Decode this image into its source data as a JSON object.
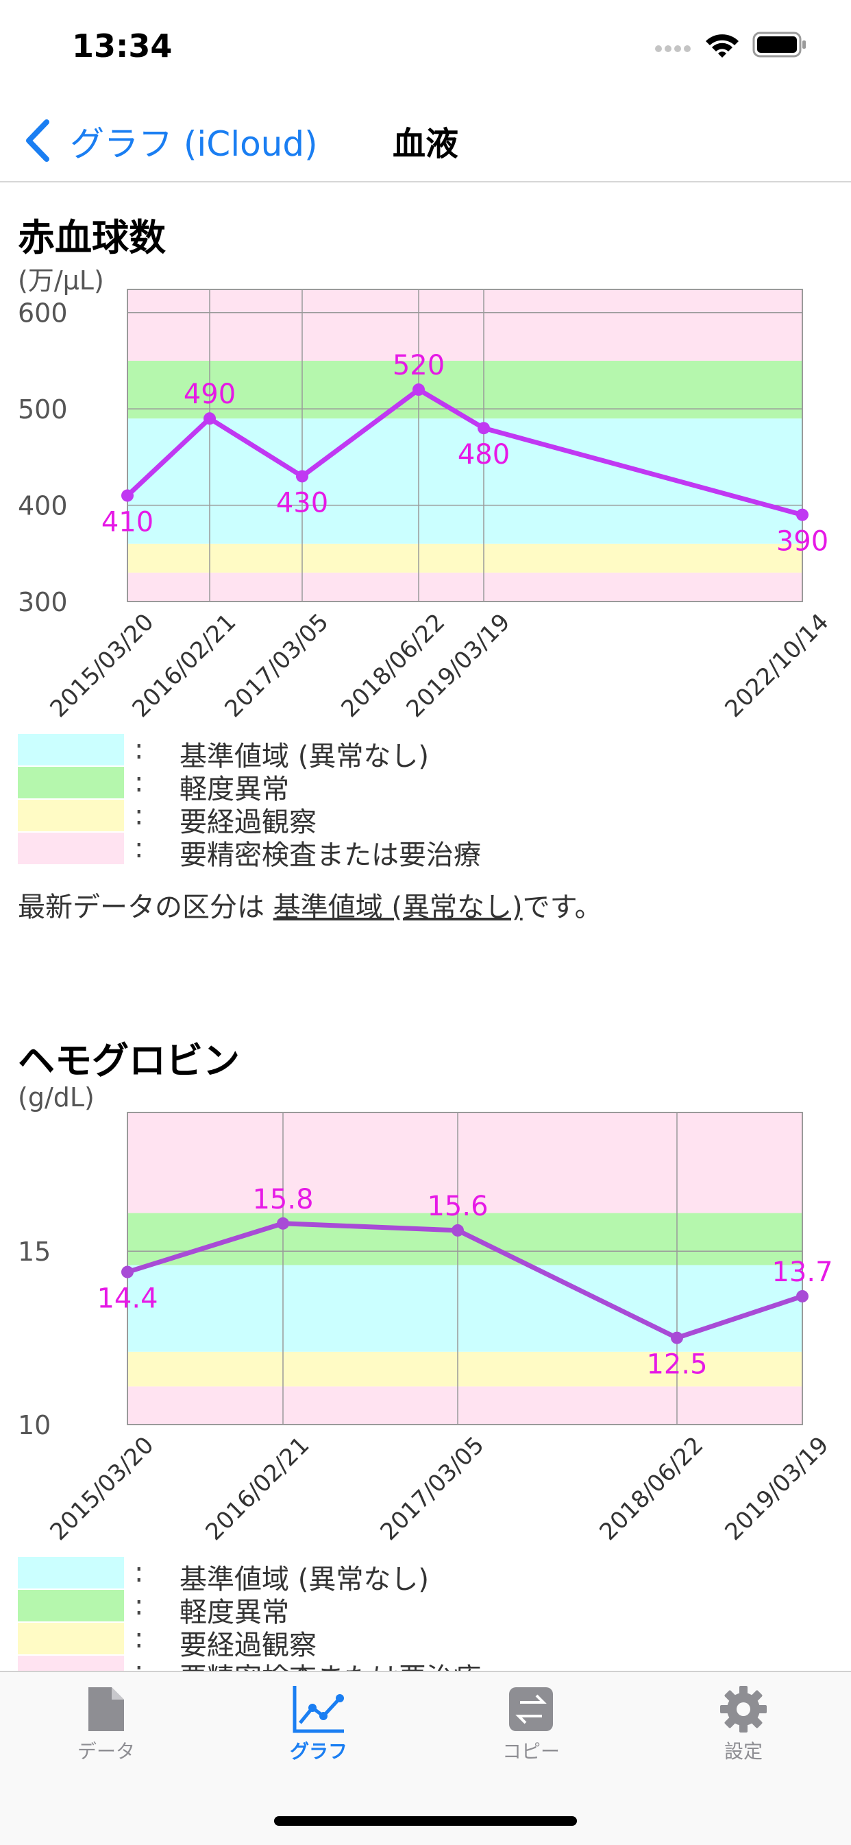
{
  "status_bar": {
    "time": "13:34"
  },
  "nav": {
    "back_label": "グラフ (iCloud)",
    "title": "血液"
  },
  "legend_labels": [
    "基準値域 (異常なし)",
    "軽度異常",
    "要経過観察",
    "要精密検査または要治療"
  ],
  "legend_colon": ":",
  "colors": {
    "normal": "#cbffff",
    "mild": "#b5f7ad",
    "observe": "#fffbc5",
    "detailed": "#ffe3f1",
    "line_rbc": "#c038f2",
    "line_hb": "#a84bd6",
    "label": "#e619e6",
    "accent": "#1a7ef2"
  },
  "charts": {
    "rbc": {
      "title": "赤血球数",
      "unit": "(万/μL)",
      "summary_prefix": "最新データの区分は",
      "summary_link": "基準値域 (異常なし)",
      "summary_suffix": "です。"
    },
    "hb": {
      "title": "ヘモグロビン",
      "unit": "(g/dL)"
    }
  },
  "chart_data": [
    {
      "type": "line",
      "title": "赤血球数",
      "ylabel": "(万/μL)",
      "ylim": [
        300,
        624
      ],
      "y_ticks": [
        300,
        400,
        500,
        600
      ],
      "categories": [
        "2015/03/20",
        "2016/02/21",
        "2017/03/05",
        "2018/06/22",
        "2019/03/19",
        "2022/10/14"
      ],
      "series": [
        {
          "values": [
            410,
            490,
            430,
            520,
            480,
            390
          ]
        }
      ],
      "bands": [
        {
          "from": 300,
          "to": 330,
          "level": "detailed"
        },
        {
          "from": 330,
          "to": 360,
          "level": "observe"
        },
        {
          "from": 360,
          "to": 490,
          "level": "normal"
        },
        {
          "from": 490,
          "to": 550,
          "level": "mild"
        },
        {
          "from": 550,
          "to": 624,
          "level": "detailed"
        }
      ],
      "grid": true
    },
    {
      "type": "line",
      "title": "ヘモグロビン",
      "ylabel": "(g/dL)",
      "ylim": [
        10,
        19
      ],
      "y_ticks": [
        10,
        15
      ],
      "categories": [
        "2015/03/20",
        "2016/02/21",
        "2017/03/05",
        "2018/06/22",
        "2019/03/19"
      ],
      "series": [
        {
          "values": [
            14.4,
            15.8,
            15.6,
            12.5,
            13.7
          ]
        }
      ],
      "bands": [
        {
          "from": 10,
          "to": 11.1,
          "level": "detailed"
        },
        {
          "from": 11.1,
          "to": 12.1,
          "level": "observe"
        },
        {
          "from": 12.1,
          "to": 14.6,
          "level": "normal"
        },
        {
          "from": 14.6,
          "to": 16.1,
          "level": "mild"
        },
        {
          "from": 16.1,
          "to": 19,
          "level": "detailed"
        }
      ],
      "grid": true
    }
  ],
  "tabs": [
    {
      "label": "データ",
      "icon": "document-icon",
      "active": false
    },
    {
      "label": "グラフ",
      "icon": "line-chart-icon",
      "active": true
    },
    {
      "label": "コピー",
      "icon": "copy-arrows-icon",
      "active": false
    },
    {
      "label": "設定",
      "icon": "gear-icon",
      "active": false
    }
  ]
}
